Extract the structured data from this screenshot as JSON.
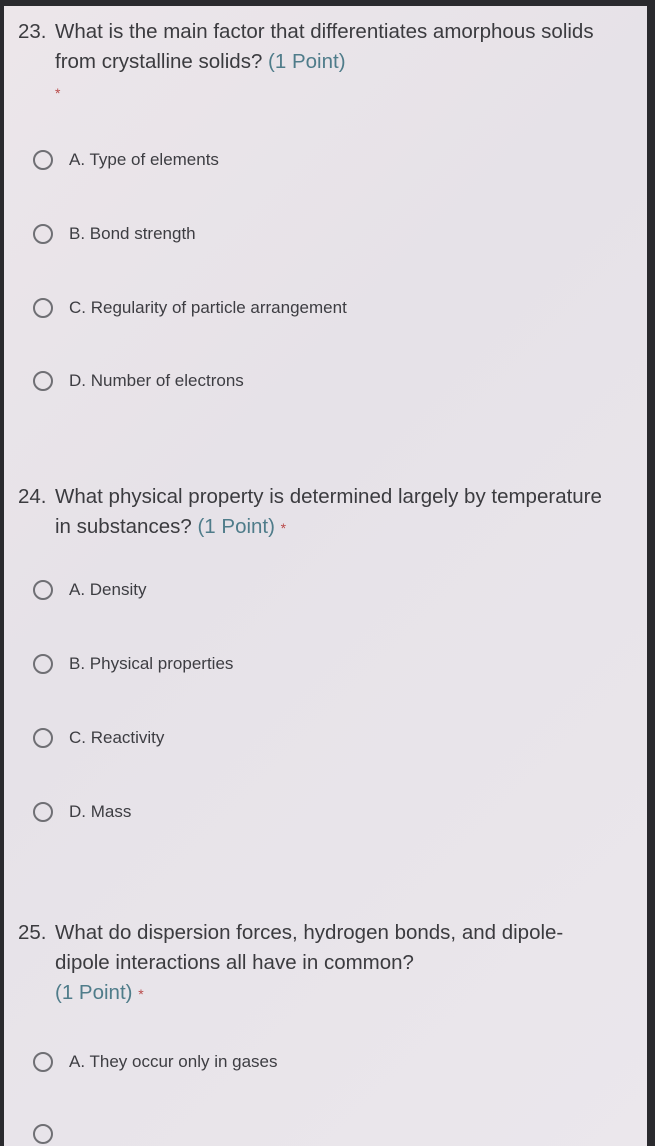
{
  "questions": [
    {
      "number": "23.",
      "text": "What is the main factor that differentiates amorphous solids from crystalline solids?",
      "points": "(1 Point)",
      "required": "*",
      "options": [
        "A. Type of elements",
        "B. Bond strength",
        "C. Regularity of particle arrangement",
        "D. Number of electrons"
      ]
    },
    {
      "number": "24.",
      "text": "What physical property is determined largely by temperature in substances?",
      "points": "(1 Point)",
      "required": "*",
      "options": [
        "A. Density",
        "B. Physical properties",
        "C. Reactivity",
        "D. Mass"
      ]
    },
    {
      "number": "25.",
      "text": "What do dispersion forces, hydrogen bonds, and dipole-dipole interactions all have in common?",
      "points": "(1 Point)",
      "required": "*",
      "options": [
        "A. They occur only in gases"
      ]
    }
  ]
}
